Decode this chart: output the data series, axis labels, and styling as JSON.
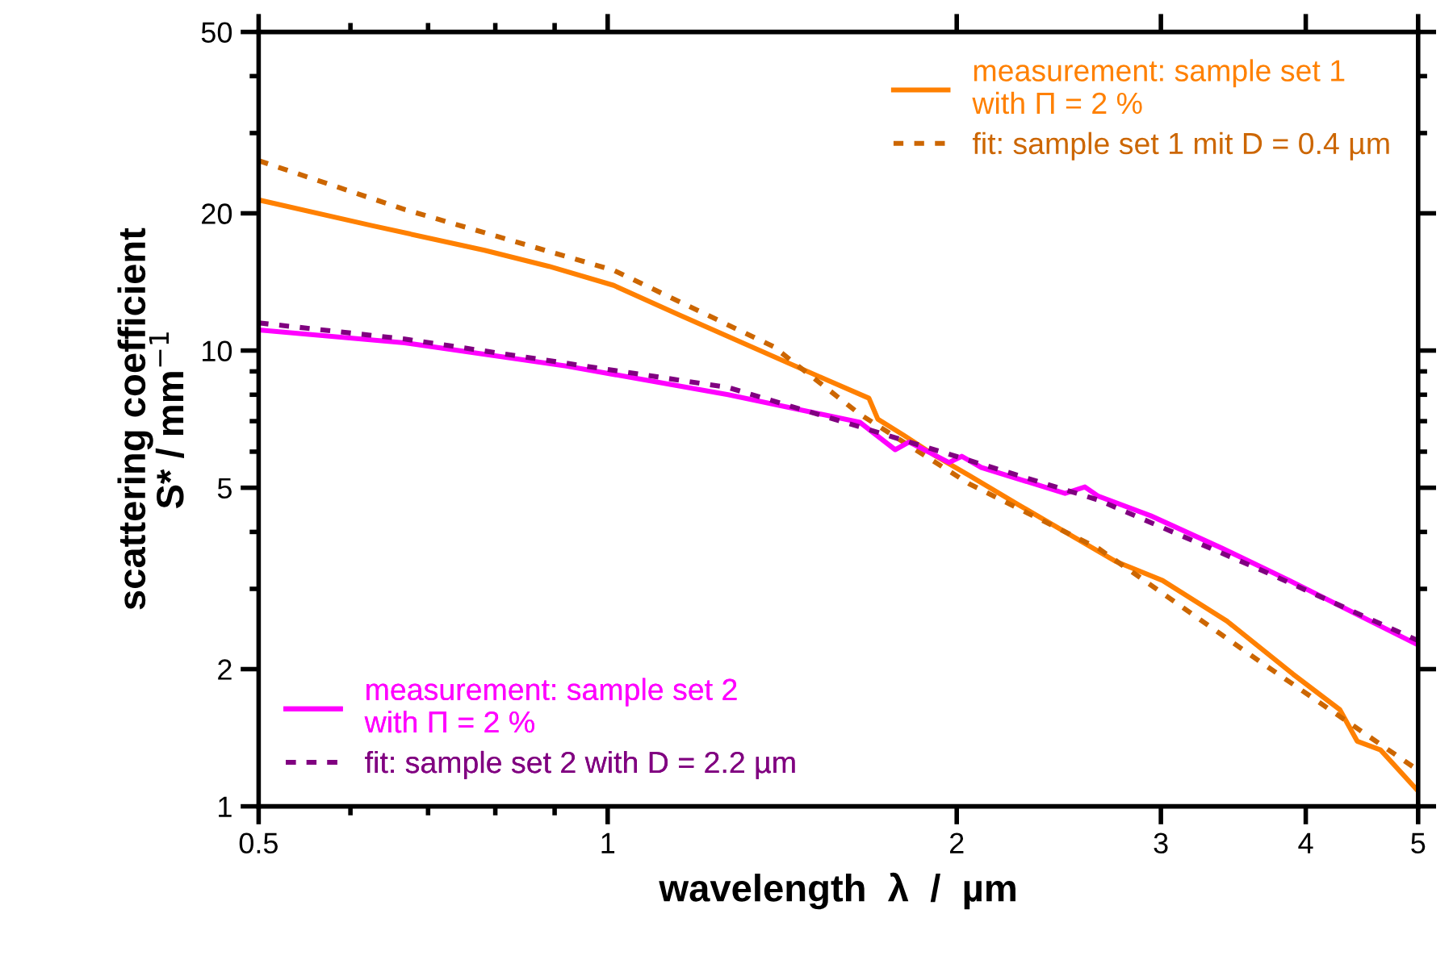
{
  "chart_data": {
    "type": "line",
    "xlabel": "wavelength  λ  /  µm",
    "ylabel": "scattering coefficient\nS* / mm$^{−1}$",
    "log": "xy",
    "xlim": [
      0.5,
      5
    ],
    "ylim": [
      1,
      50
    ],
    "xticks": [
      0.5,
      1,
      2,
      3,
      4,
      5
    ],
    "yticks": [
      1,
      2,
      5,
      10,
      20,
      50
    ],
    "grid": false,
    "legend": [
      "top right",
      "bottom left"
    ],
    "series": [
      {
        "name": "measurement: sample set 1\nwith Π = 2 %",
        "color": "#ff8000",
        "line_style": "solid",
        "x": [
          0.5,
          0.626,
          0.783,
          0.89,
          1.012,
          1.15,
          1.307,
          1.537,
          1.68,
          1.71,
          1.8,
          1.92,
          2.05,
          2.26,
          2.48,
          2.74,
          3.01,
          3.42,
          3.9,
          4.28,
          4.43,
          4.64,
          5.0
        ],
        "values": [
          21.4,
          18.8,
          16.6,
          15.3,
          13.9,
          12.0,
          10.4,
          8.67,
          7.86,
          7.07,
          6.52,
          5.86,
          5.32,
          4.59,
          4.0,
          3.45,
          3.13,
          2.55,
          1.95,
          1.63,
          1.39,
          1.33,
          1.08
        ]
      },
      {
        "name": "fit: sample set 1 mit D = 0.4 µm",
        "color": "#cc6600",
        "line_style": "dashed",
        "x": [
          0.5,
          0.668,
          1.012,
          1.39,
          1.65,
          2.05,
          2.65,
          3.65,
          5.0
        ],
        "values": [
          26.1,
          20.4,
          15.0,
          10.2,
          7.25,
          5.1,
          3.68,
          2.08,
          1.2
        ]
      },
      {
        "name": "measurement: sample set 2\nwith Π = 2 %",
        "color": "#ff00ff",
        "line_style": "solid",
        "x": [
          0.5,
          0.668,
          0.921,
          1.27,
          1.65,
          1.77,
          1.82,
          1.97,
          2.02,
          2.1,
          2.48,
          2.58,
          2.65,
          2.94,
          3.39,
          3.87,
          5.0
        ],
        "values": [
          11.1,
          10.4,
          9.25,
          8.0,
          6.96,
          6.06,
          6.3,
          5.68,
          5.86,
          5.54,
          4.86,
          5.02,
          4.79,
          4.34,
          3.68,
          3.13,
          2.26
        ]
      },
      {
        "name": "fit: sample set 2 with D = 2.2 µm",
        "color": "#800080",
        "line_style": "dashed",
        "x": [
          0.5,
          0.668,
          1.27,
          1.65,
          2.65,
          3.65,
          5.0
        ],
        "values": [
          11.5,
          10.6,
          8.3,
          6.8,
          4.7,
          3.31,
          2.31
        ]
      }
    ]
  }
}
